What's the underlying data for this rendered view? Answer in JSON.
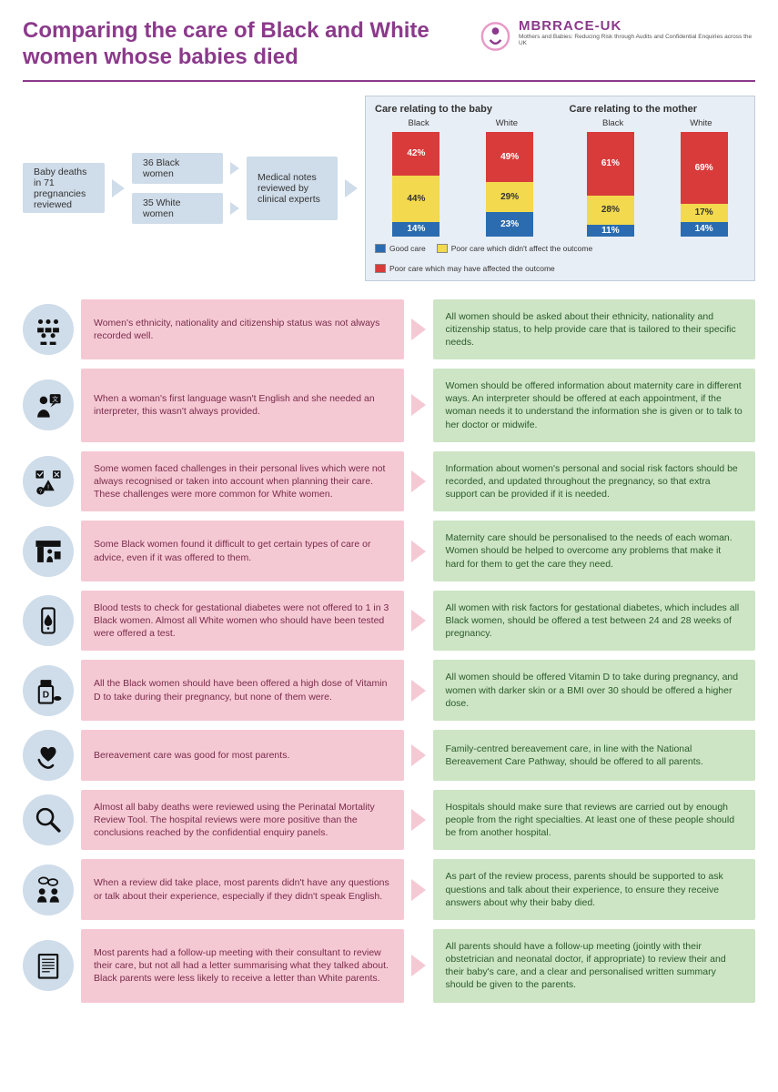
{
  "header": {
    "title": "Comparing the care of Black and White women whose babies died",
    "logo_name": "MBRRACE-UK",
    "logo_sub": "Mothers and Babies: Reducing Risk through Audits and Confidential Enquiries across the UK"
  },
  "flow": {
    "start": "Baby deaths in 71 pregnancies reviewed",
    "black": "36 Black women",
    "white": "35 White women",
    "review": "Medical notes reviewed by clinical experts"
  },
  "charts": {
    "baby": {
      "title": "Care relating to the baby",
      "label_black": "Black",
      "label_white": "White",
      "black": {
        "red": 42,
        "yellow": 44,
        "blue": 14
      },
      "white": {
        "red": 49,
        "yellow": 29,
        "blue": 23
      }
    },
    "mother": {
      "title": "Care relating to the mother",
      "label_black": "Black",
      "label_white": "White",
      "black": {
        "red": 61,
        "yellow": 28,
        "blue": 11
      },
      "white": {
        "red": 69,
        "yellow": 17,
        "blue": 14
      }
    },
    "legend": {
      "good": "Good care",
      "poor_no_effect": "Poor care which didn't affect the outcome",
      "poor_effect": "Poor care which may have affected the outcome"
    },
    "colors": {
      "red": "#d93b3b",
      "yellow": "#f2d94e",
      "blue": "#2b6cb0"
    }
  },
  "findings": [
    {
      "icon": "people-group",
      "problem": "Women's ethnicity, nationality and citizenship status was not always recorded well.",
      "recommendation": "All women should be asked about their ethnicity, nationality and citizenship status, to help provide care that is tailored to their specific needs."
    },
    {
      "icon": "interpreter",
      "problem": "When a woman's first language wasn't English and she needed an interpreter, this wasn't always provided.",
      "recommendation": "Women should be offered information about maternity care in different ways. An interpreter should be offered at each appointment, if the woman needs it to understand the information she is given or to talk to her doctor or midwife."
    },
    {
      "icon": "risk-factors",
      "problem": "Some women faced challenges in their personal lives which were not always recognised or taken into account when planning their care. These challenges were more common for White women.",
      "recommendation": "Information about women's personal and social risk factors should be recorded, and updated throughout the pregnancy, so that extra support can be provided if it is needed."
    },
    {
      "icon": "consultation",
      "problem": "Some Black women found it difficult to get certain types of care or advice, even if it was offered to them.",
      "recommendation": "Maternity care should be personalised to the needs of each woman. Women should be helped to overcome any problems that make it hard for them to get the care they need."
    },
    {
      "icon": "blood-test",
      "problem": "Blood tests to check for gestational diabetes were not offered to 1 in 3 Black women. Almost all White women who should have been tested were offered a test.",
      "recommendation": "All women with risk factors for gestational diabetes, which includes all Black women, should be offered a test between 24 and 28 weeks of pregnancy."
    },
    {
      "icon": "vitamin-d",
      "problem": "All the Black women should have been offered a high dose of Vitamin D to take during their pregnancy, but none of them were.",
      "recommendation": "All women should be offered Vitamin D to take during pregnancy, and women with darker skin or a BMI over 30 should be offered a higher dose."
    },
    {
      "icon": "bereavement",
      "problem": "Bereavement care was good for most parents.",
      "recommendation": "Family-centred bereavement care, in line with the National Bereavement Care Pathway, should be offered to all parents."
    },
    {
      "icon": "review-tool",
      "problem": "Almost all baby deaths were reviewed using the Perinatal Mortality Review Tool. The hospital reviews were more positive than the conclusions reached by the confidential enquiry panels.",
      "recommendation": "Hospitals should make sure that reviews are carried out by enough people from the right specialties. At least one of these people should be from another hospital."
    },
    {
      "icon": "discussion",
      "problem": "When a review did take place, most parents didn't have any questions or talk about their experience, especially if they didn't speak English.",
      "recommendation": "As part of the review process, parents should be supported to ask questions and talk about their experience, to ensure they receive answers about why their baby died."
    },
    {
      "icon": "letter",
      "problem": "Most parents had a follow-up meeting with their consultant to review their care, but not all had a letter summarising what they talked about. Black parents were less likely to receive a letter than White parents.",
      "recommendation": "All parents should have a follow-up meeting (jointly with their obstetrician and neonatal doctor, if appropriate) to review their and their baby's care, and a clear and personalised written summary should be given to the parents."
    }
  ]
}
